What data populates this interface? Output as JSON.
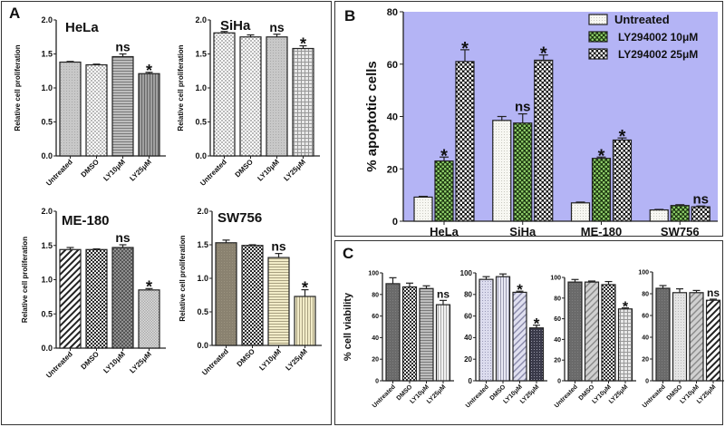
{
  "panels": {
    "a": {
      "letter": "A"
    },
    "b": {
      "letter": "B"
    },
    "c": {
      "letter": "C"
    }
  },
  "patterns": {
    "light_dots": "#d9d9d9",
    "checker_dark": "#2a2a2a",
    "green": "#5a9a45",
    "lavender": "#b4b4f5",
    "tan": "#8a8270",
    "cream": "#f2ecc8"
  },
  "chart_data": [
    {
      "id": "a-hela",
      "type": "bar",
      "title": "HeLa",
      "xlabel": "",
      "ylabel": "Relative cell proliferation",
      "ylim": [
        0,
        2.0
      ],
      "yticks": [
        "0.0",
        "0.5",
        "1.0",
        "1.5",
        "2.0"
      ],
      "ytick_values": [
        0,
        0.5,
        1.0,
        1.5,
        2.0
      ],
      "categories": [
        "Untreated",
        "DMSO",
        "LY10μM",
        "LY25μM"
      ],
      "values": [
        1.38,
        1.34,
        1.46,
        1.21
      ],
      "errors": [
        0.01,
        0.01,
        0.04,
        0.02
      ],
      "annotations": [
        "",
        "",
        "ns",
        "*"
      ],
      "fills": [
        "dots-gray",
        "checker-light",
        "hstripe-gray",
        "vstripe-gray"
      ]
    },
    {
      "id": "a-siha",
      "type": "bar",
      "title": "SiHa",
      "xlabel": "",
      "ylabel": "Relative cell proliferation",
      "ylim": [
        0,
        2.0
      ],
      "yticks": [
        "0.0",
        "0.5",
        "1.0",
        "1.5",
        "2.0"
      ],
      "ytick_values": [
        0,
        0.5,
        1.0,
        1.5,
        2.0
      ],
      "categories": [
        "Untreated",
        "DMSO",
        "LY10μM",
        "LY25μM"
      ],
      "values": [
        1.81,
        1.75,
        1.75,
        1.58
      ],
      "errors": [
        0.02,
        0.03,
        0.04,
        0.04
      ],
      "annotations": [
        "",
        "",
        "ns",
        "*"
      ],
      "fills": [
        "checker-light",
        "checker-light",
        "dots-gray",
        "grid-light"
      ]
    },
    {
      "id": "a-me180",
      "type": "bar",
      "title": "ME-180",
      "xlabel": "",
      "ylabel": "Relative cell proliferation",
      "ylim": [
        0,
        2.0
      ],
      "yticks": [
        "0.0",
        "0.5",
        "1.0",
        "1.5",
        "2.0"
      ],
      "ytick_values": [
        0,
        0.5,
        1.0,
        1.5,
        2.0
      ],
      "categories": [
        "Untreated",
        "DMSO",
        "LY10μM",
        "LY25μM"
      ],
      "values": [
        1.44,
        1.44,
        1.47,
        0.85
      ],
      "errors": [
        0.03,
        0.01,
        0.04,
        0.02
      ],
      "annotations": [
        "",
        "",
        "ns",
        "*"
      ],
      "fills": [
        "diag-stripe",
        "checker-dark",
        "checker-mid",
        "checker-fine"
      ]
    },
    {
      "id": "a-sw756",
      "type": "bar",
      "title": "SW756",
      "xlabel": "",
      "ylabel": "Relative cell proliferation",
      "ylim": [
        0,
        2.0
      ],
      "yticks": [
        "0.0",
        "0.5",
        "1.0",
        "1.5",
        "2.0"
      ],
      "ytick_values": [
        0,
        0.5,
        1.0,
        1.5,
        2.0
      ],
      "categories": [
        "Untreated",
        "DMSO",
        "LY10μM",
        "LY25μM"
      ],
      "values": [
        1.53,
        1.49,
        1.31,
        0.73
      ],
      "errors": [
        0.04,
        0.01,
        0.06,
        0.1
      ],
      "annotations": [
        "",
        "",
        "ns",
        "*"
      ],
      "fills": [
        "tan-solid",
        "checker-dark",
        "hstripe-cream",
        "vstripe-cream"
      ]
    },
    {
      "id": "b-apoptosis",
      "type": "bar",
      "title": "",
      "xlabel": "",
      "ylabel": "% apoptotic cells",
      "ylim": [
        0,
        80
      ],
      "yticks": [
        "0",
        "20",
        "40",
        "60",
        "80"
      ],
      "ytick_values": [
        0,
        20,
        40,
        60,
        80
      ],
      "categories": [
        "HeLa",
        "SiHa",
        "ME-180",
        "SW756"
      ],
      "legend_position": "top-right",
      "series": [
        {
          "name": "Untreated",
          "values": [
            9.2,
            38.5,
            7.0,
            4.3
          ],
          "errors": [
            0.3,
            1.5,
            0.3,
            0.2
          ],
          "annotations": [
            "",
            "",
            "",
            ""
          ],
          "fill": "dots-white"
        },
        {
          "name": "LY294002 10μM",
          "values": [
            23.0,
            37.5,
            24.0,
            6.0
          ],
          "errors": [
            1.5,
            3.5,
            0.5,
            0.3
          ],
          "annotations": [
            "*",
            "ns",
            "*",
            ""
          ],
          "fill": "checker-green"
        },
        {
          "name": "LY294002 25μM",
          "values": [
            61.0,
            61.5,
            31.0,
            5.5
          ],
          "errors": [
            4.5,
            2.0,
            0.8,
            0.3
          ],
          "annotations": [
            "*",
            "*",
            "*",
            "ns"
          ],
          "fill": "checker-white"
        }
      ],
      "plot_background": "#b4b4f5"
    },
    {
      "id": "c-1",
      "type": "bar",
      "title": "",
      "xlabel": "",
      "ylabel": "% cell viability",
      "ylim": [
        0,
        100
      ],
      "yticks": [
        "0",
        "20",
        "40",
        "60",
        "80",
        "100"
      ],
      "ytick_values": [
        0,
        20,
        40,
        60,
        80,
        100
      ],
      "categories": [
        "Untreated",
        "DMSO",
        "LY10μM",
        "LY25μM"
      ],
      "values": [
        90,
        87,
        85.5,
        70.5
      ],
      "errors": [
        5.5,
        3.5,
        2.5,
        4.0
      ],
      "annotations": [
        "",
        "",
        "",
        "ns"
      ],
      "fills": [
        "dark-gray",
        "checker-dark",
        "hstripe-gray",
        "vstripe-light"
      ]
    },
    {
      "id": "c-2",
      "type": "bar",
      "title": "",
      "xlabel": "",
      "ylabel": "",
      "ylim": [
        0,
        100
      ],
      "yticks": [
        "0",
        "20",
        "40",
        "60",
        "80",
        "100"
      ],
      "ytick_values": [
        0,
        20,
        40,
        60,
        80,
        100
      ],
      "categories": [
        "Untreated",
        "DMSO",
        "LY10μM",
        "LY25μM"
      ],
      "values": [
        94,
        96.5,
        82,
        49
      ],
      "errors": [
        2.5,
        2.5,
        1.0,
        2.5
      ],
      "annotations": [
        "",
        "",
        "*",
        "*"
      ],
      "fills": [
        "dots-lav",
        "vstripe-lav",
        "diag-lav",
        "dark-dots"
      ]
    },
    {
      "id": "c-3",
      "type": "bar",
      "title": "",
      "xlabel": "",
      "ylabel": "",
      "ylim": [
        0,
        100
      ],
      "yticks": [
        "0",
        "20",
        "40",
        "60",
        "80",
        "100"
      ],
      "ytick_values": [
        0,
        20,
        40,
        60,
        80,
        100
      ],
      "categories": [
        "Untreated",
        "DMSO",
        "LY10μM",
        "LY25μM"
      ],
      "values": [
        95.5,
        95.5,
        93,
        69.5
      ],
      "errors": [
        2.5,
        1.0,
        3.0,
        1.0
      ],
      "annotations": [
        "",
        "",
        "",
        "*"
      ],
      "fills": [
        "dark-gray",
        "diag-gray",
        "checker-dark",
        "grid-light"
      ]
    },
    {
      "id": "c-4",
      "type": "bar",
      "title": "",
      "xlabel": "",
      "ylabel": "",
      "ylim": [
        0,
        100
      ],
      "yticks": [
        "0",
        "20",
        "40",
        "60",
        "80",
        "100"
      ],
      "ytick_values": [
        0,
        20,
        40,
        60,
        80,
        100
      ],
      "categories": [
        "Untreated",
        "DMSO",
        "LY10μM",
        "LY25μM"
      ],
      "values": [
        85,
        81,
        81,
        74
      ],
      "errors": [
        2.5,
        3.5,
        2.0,
        1.0
      ],
      "annotations": [
        "",
        "",
        "",
        "ns"
      ],
      "fills": [
        "dark-gray",
        "dots-light",
        "diag-gray",
        "diag-stripe"
      ]
    }
  ]
}
